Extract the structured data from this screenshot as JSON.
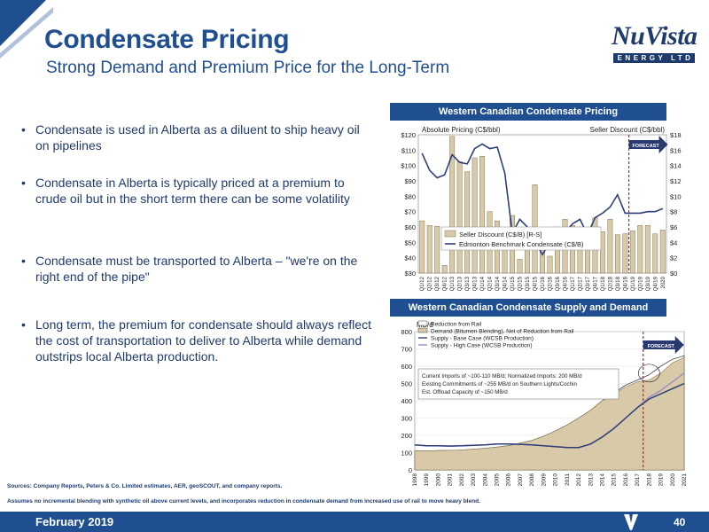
{
  "header": {
    "title": "Condensate Pricing",
    "subtitle": "Strong Demand and Premium Price for the Long-Term",
    "logo_text": "NuVista",
    "logo_sub": "ENERGY LTD"
  },
  "bullets": [
    "Condensate is used in Alberta as a diluent to ship heavy oil on pipelines",
    "Condensate in Alberta is typically priced at a premium to crude oil but in the short term there can be some volatility",
    "Condensate must be transported to Alberta – \"we're on the right end of the pipe\"",
    "Long term, the premium for condensate should always reflect the cost of transportation to deliver to Alberta while demand outstrips local Alberta production."
  ],
  "footnotes": {
    "sources": "Sources: Company Reports, Peters & Co. Limited estimates, AER, geoSCOUT, and company reports.",
    "assumptions": "Assumes no incremental blending with synthetic oil above current levels, and incorporates reduction in condensate demand from increased use of rail to move heavy blend."
  },
  "footer": {
    "date": "February 2019",
    "page": "40"
  },
  "colors": {
    "navy": "#1f4e91",
    "bar": "#d8caa8",
    "line": "#2e3f78",
    "forecast": "#c0202a",
    "area": "#d8caa8"
  },
  "chart_data": [
    {
      "type": "bar",
      "title": "Western Canadian Condensate Pricing",
      "left_axis_label": "Absolute Pricing (C$/bbl)",
      "right_axis_label": "Seller Discount (C$/bbl)",
      "forecast_label": "FORECAST",
      "categories": [
        "Q1/12",
        "Q2/12",
        "Q3/12",
        "Q4/12",
        "Q1/13",
        "Q2/13",
        "Q3/13",
        "Q4/13",
        "Q1/14",
        "Q2/14",
        "Q3/14",
        "Q4/14",
        "Q1/15",
        "Q2/15",
        "Q3/15",
        "Q4/15",
        "Q1/16",
        "Q2/16",
        "Q3/16",
        "Q4/16",
        "Q1/17",
        "Q2/17",
        "Q3/17",
        "Q4/17",
        "Q1/18",
        "Q2/18",
        "Q3/18",
        "Q4/18",
        "Q1/19",
        "Q2/19",
        "Q3/19",
        "Q4/19",
        "2020"
      ],
      "left_ticks": [
        "$30",
        "$40",
        "$50",
        "$60",
        "$70",
        "$80",
        "$90",
        "$100",
        "$110",
        "$120"
      ],
      "right_ticks": [
        "$0",
        "$2",
        "$4",
        "$6",
        "$8",
        "$10",
        "$12",
        "$14",
        "$16",
        "$18"
      ],
      "left_range": [
        30,
        120
      ],
      "right_range": [
        0,
        18
      ],
      "forecast_start": "Q1/19",
      "series": [
        {
          "name": "Seller Discount (C$/B) [R-S]",
          "type": "bar",
          "axis": "right",
          "values": [
            6.8,
            6.2,
            6.1,
            1.0,
            17.8,
            14.5,
            13.2,
            15.0,
            15.2,
            8.0,
            6.8,
            4.5,
            7.5,
            1.8,
            5.5,
            11.5,
            3.2,
            2.2,
            6.0,
            7.0,
            6.2,
            6.0,
            5.0,
            7.2,
            5.4,
            7.0,
            5.0,
            5.1,
            5.5,
            6.2,
            6.2,
            5.1,
            5.6
          ]
        },
        {
          "name": "Edmonton Benchmark Condensate (C$/B)",
          "type": "line",
          "axis": "left",
          "values": [
            108,
            97,
            92,
            94,
            107,
            102,
            101,
            111,
            114,
            111,
            112,
            95,
            56,
            65,
            60,
            51,
            42,
            50,
            52,
            56,
            62,
            65,
            55,
            66,
            69,
            73,
            81,
            69,
            69,
            69,
            70,
            70,
            72
          ]
        }
      ]
    },
    {
      "type": "area",
      "title": "Western Canadian Condensate Supply and Demand",
      "ylabel": "MB/d",
      "forecast_label": "FORECAST",
      "ylim": [
        0,
        800
      ],
      "y_ticks": [
        0,
        100,
        200,
        300,
        400,
        500,
        600,
        700,
        800
      ],
      "x": [
        "1998",
        "1999",
        "2000",
        "2001",
        "2002",
        "2003",
        "2004",
        "2005",
        "2006",
        "2007",
        "2008",
        "2009",
        "2010",
        "2011",
        "2012",
        "2013",
        "2014",
        "2015",
        "2016",
        "2017",
        "2018",
        "2019",
        "2020",
        "2021"
      ],
      "forecast_start": "2018",
      "annotation": [
        "Current Imports of ~100-110 MB/d; Normalized Imports: 200 MB/d",
        "Existing Commitments of ~255 MB/d on Southern Lights/Cochin",
        "Est. Offload Capacity of ~150 MB/d"
      ],
      "series": [
        {
          "name": "Reduction from Rail",
          "type": "area",
          "values": [
            110,
            110,
            112,
            113,
            115,
            120,
            125,
            132,
            140,
            155,
            170,
            195,
            225,
            260,
            300,
            345,
            400,
            445,
            490,
            520,
            550,
            600,
            640,
            660
          ]
        },
        {
          "name": "Demand (Bitumen Blending), Net of Reduction from Rail",
          "type": "area",
          "values": [
            110,
            110,
            112,
            113,
            115,
            120,
            125,
            132,
            140,
            155,
            170,
            195,
            225,
            260,
            300,
            345,
            400,
            440,
            480,
            510,
            520,
            560,
            620,
            650
          ]
        },
        {
          "name": "Supply - Base Case (WCSB Production)",
          "type": "line",
          "values": [
            145,
            140,
            140,
            138,
            140,
            142,
            145,
            150,
            150,
            148,
            145,
            140,
            135,
            130,
            130,
            150,
            190,
            240,
            300,
            360,
            410,
            440,
            470,
            500
          ]
        },
        {
          "name": "Supply - High Case (WCSB Production)",
          "type": "line",
          "values": [
            145,
            140,
            140,
            138,
            140,
            142,
            145,
            150,
            150,
            148,
            145,
            140,
            135,
            130,
            130,
            150,
            190,
            240,
            300,
            360,
            420,
            460,
            510,
            560
          ]
        }
      ]
    }
  ]
}
